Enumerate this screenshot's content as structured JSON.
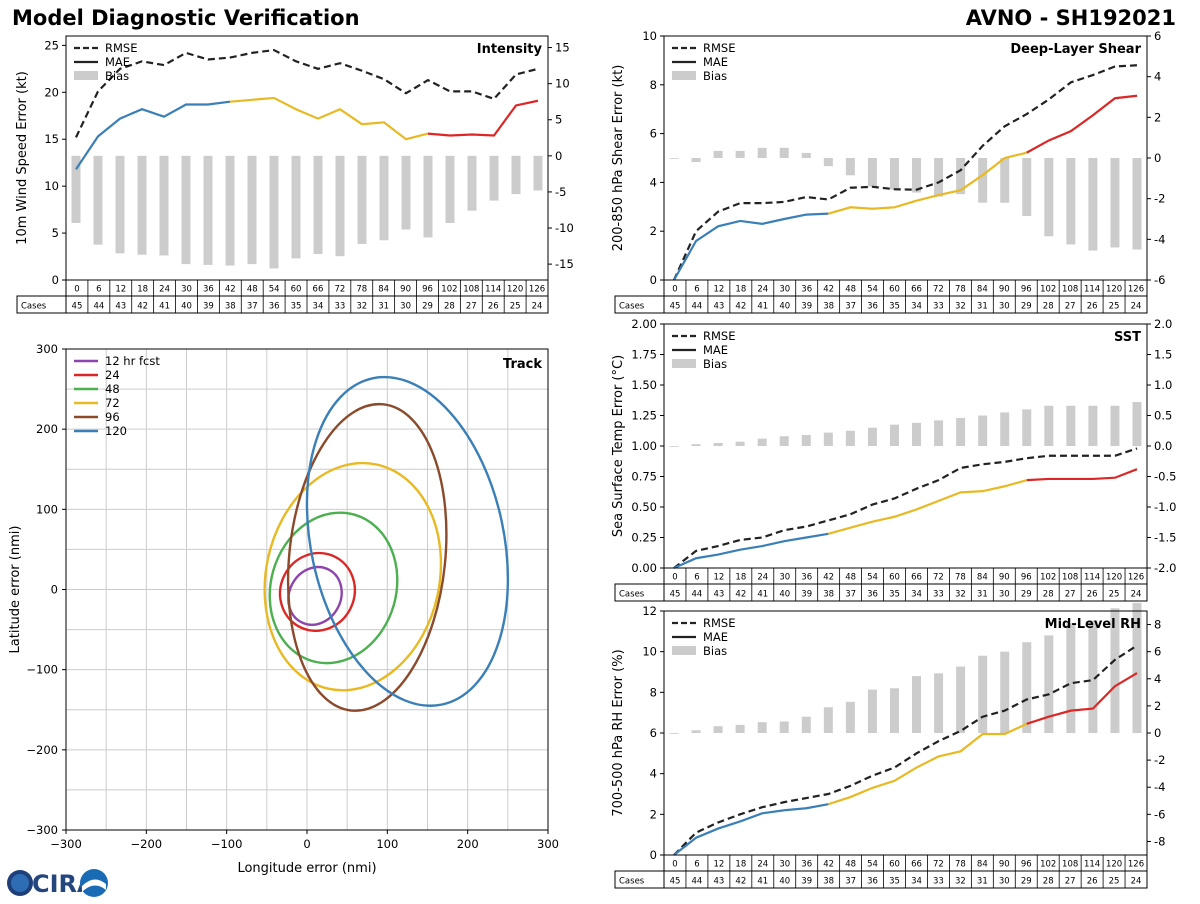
{
  "header": {
    "title_left": "Model Diagnostic Verification",
    "title_right": "AVNO - SH192021"
  },
  "logo": {
    "text": "CIRA"
  },
  "colors": {
    "rmse": "#222222",
    "blue": "#3a7fb7",
    "yellow": "#e8b923",
    "red": "#dd2727",
    "bias": "#cccccc",
    "grid": "#cccccc"
  },
  "table": {
    "cases_label": "Cases",
    "hours": [
      0,
      6,
      12,
      18,
      24,
      30,
      36,
      42,
      48,
      54,
      60,
      66,
      72,
      78,
      84,
      90,
      96,
      102,
      108,
      114,
      120,
      126
    ],
    "cases_intensity": [
      45,
      44,
      43,
      42,
      41,
      40,
      39,
      38,
      37,
      36,
      35,
      34,
      33,
      32,
      31,
      30,
      29,
      28,
      27,
      26,
      25,
      24
    ],
    "cases": [
      45,
      44,
      43,
      42,
      41,
      40,
      39,
      38,
      37,
      36,
      35,
      34,
      33,
      32,
      31,
      30,
      29,
      28,
      27,
      26,
      25,
      24
    ]
  },
  "legend_labels": {
    "rmse": "RMSE",
    "mae": "MAE",
    "bias": "Bias"
  },
  "chart_data": [
    {
      "id": "intensity",
      "type": "line",
      "title": "Intensity",
      "ylabel": "10m Wind Speed Error (kt)",
      "ylim": [
        0,
        26
      ],
      "yticks": [
        0,
        5,
        10,
        15,
        20,
        25
      ],
      "y2lim": [
        -17.2,
        16.6
      ],
      "y2ticks": [
        -15,
        -10,
        -5,
        0,
        5,
        10,
        15
      ],
      "x": [
        0,
        6,
        12,
        18,
        24,
        30,
        36,
        42,
        48,
        54,
        60,
        66,
        72,
        78,
        84,
        90,
        96,
        102,
        108,
        114,
        120,
        126
      ],
      "series": [
        {
          "name": "RMSE",
          "values": [
            15.2,
            20.1,
            22.5,
            23.3,
            22.9,
            24.2,
            23.5,
            23.7,
            24.2,
            24.5,
            23.3,
            22.5,
            23.1,
            22.3,
            21.4,
            19.9,
            21.3,
            20.1,
            20.1,
            19.3,
            21.9,
            22.5
          ]
        },
        {
          "name": "MAE",
          "values": [
            11.8,
            15.3,
            17.2,
            18.2,
            17.4,
            18.7,
            18.7,
            19.0,
            19.2,
            19.4,
            18.2,
            17.2,
            18.2,
            16.6,
            16.8,
            15.0,
            15.6,
            15.4,
            15.5,
            15.4,
            18.6,
            19.1
          ]
        },
        {
          "name": "Bias",
          "values": [
            -9.3,
            -12.3,
            -13.5,
            -13.7,
            -13.8,
            -15.0,
            -15.1,
            -15.2,
            -15.0,
            -15.6,
            -14.2,
            -13.6,
            -13.9,
            -12.2,
            -11.7,
            -10.2,
            -11.3,
            -9.3,
            -7.6,
            -6.2,
            -5.3,
            -4.8
          ]
        }
      ]
    },
    {
      "id": "shear",
      "type": "line",
      "title": "Deep-Layer Shear",
      "ylabel": "200-850 hPa Shear Error (kt)",
      "ylim": [
        0,
        10
      ],
      "yticks": [
        0,
        2,
        4,
        6,
        8,
        10
      ],
      "y2lim": [
        -6,
        6
      ],
      "y2ticks": [
        -6,
        -4,
        -2,
        0,
        2,
        4,
        6
      ],
      "x": [
        0,
        6,
        12,
        18,
        24,
        30,
        36,
        42,
        48,
        54,
        60,
        66,
        72,
        78,
        84,
        90,
        96,
        102,
        108,
        114,
        120,
        126
      ],
      "series": [
        {
          "name": "RMSE",
          "values": [
            0.0,
            2.0,
            2.8,
            3.15,
            3.15,
            3.2,
            3.4,
            3.3,
            3.78,
            3.82,
            3.72,
            3.7,
            4.0,
            4.5,
            5.5,
            6.3,
            6.8,
            7.4,
            8.1,
            8.4,
            8.75,
            8.8
          ]
        },
        {
          "name": "MAE",
          "values": [
            0.0,
            1.6,
            2.2,
            2.42,
            2.3,
            2.5,
            2.68,
            2.72,
            2.98,
            2.92,
            2.98,
            3.25,
            3.48,
            3.68,
            4.3,
            5.0,
            5.22,
            5.72,
            6.1,
            6.75,
            7.45,
            7.55
          ]
        },
        {
          "name": "Bias",
          "values": [
            0.0,
            -0.2,
            0.35,
            0.35,
            0.5,
            0.5,
            0.25,
            -0.4,
            -0.85,
            -1.4,
            -1.55,
            -1.7,
            -1.9,
            -1.78,
            -2.2,
            -2.2,
            -2.85,
            -3.85,
            -4.25,
            -4.55,
            -4.4,
            -4.5
          ]
        }
      ]
    },
    {
      "id": "sst",
      "type": "line",
      "title": "SST",
      "ylabel": "Sea Surface Temp Error (°C)",
      "ylim": [
        0,
        2.0
      ],
      "yticks": [
        0.0,
        0.25,
        0.5,
        0.75,
        1.0,
        1.25,
        1.5,
        1.75,
        2.0
      ],
      "y2lim": [
        -2.0,
        2.0
      ],
      "y2ticks": [
        -2.0,
        -1.5,
        -1.0,
        -0.5,
        0.0,
        0.5,
        1.0,
        1.5,
        2.0
      ],
      "x": [
        0,
        6,
        12,
        18,
        24,
        30,
        36,
        42,
        48,
        54,
        60,
        66,
        72,
        78,
        84,
        90,
        96,
        102,
        108,
        114,
        120,
        126
      ],
      "series": [
        {
          "name": "RMSE",
          "values": [
            0.0,
            0.14,
            0.18,
            0.23,
            0.25,
            0.31,
            0.34,
            0.39,
            0.44,
            0.52,
            0.57,
            0.65,
            0.72,
            0.82,
            0.85,
            0.87,
            0.9,
            0.92,
            0.92,
            0.92,
            0.92,
            0.98
          ]
        },
        {
          "name": "MAE",
          "values": [
            0.0,
            0.08,
            0.11,
            0.15,
            0.18,
            0.22,
            0.25,
            0.28,
            0.33,
            0.38,
            0.42,
            0.48,
            0.55,
            0.62,
            0.63,
            0.67,
            0.72,
            0.73,
            0.73,
            0.73,
            0.74,
            0.81
          ]
        },
        {
          "name": "Bias",
          "values": [
            0.0,
            0.03,
            0.05,
            0.07,
            0.12,
            0.16,
            0.18,
            0.22,
            0.25,
            0.3,
            0.35,
            0.38,
            0.42,
            0.46,
            0.5,
            0.55,
            0.6,
            0.66,
            0.66,
            0.66,
            0.66,
            0.72
          ]
        }
      ]
    },
    {
      "id": "rh",
      "type": "line",
      "title": "Mid-Level RH",
      "ylabel": "700-500 hPa RH Error (%)",
      "ylim": [
        0,
        12
      ],
      "yticks": [
        0,
        2,
        4,
        6,
        8,
        10,
        12
      ],
      "y2lim": [
        -9,
        9
      ],
      "y2ticks": [
        -8,
        -6,
        -4,
        -2,
        0,
        2,
        4,
        6,
        8
      ],
      "x": [
        0,
        6,
        12,
        18,
        24,
        30,
        36,
        42,
        48,
        54,
        60,
        66,
        72,
        78,
        84,
        90,
        96,
        102,
        108,
        114,
        120,
        126
      ],
      "series": [
        {
          "name": "RMSE",
          "values": [
            0.0,
            1.1,
            1.6,
            2.0,
            2.35,
            2.6,
            2.8,
            3.0,
            3.4,
            3.9,
            4.3,
            5.0,
            5.6,
            6.1,
            6.8,
            7.1,
            7.65,
            7.9,
            8.45,
            8.6,
            9.6,
            10.3
          ]
        },
        {
          "name": "MAE",
          "values": [
            0.0,
            0.85,
            1.3,
            1.65,
            2.05,
            2.2,
            2.3,
            2.5,
            2.85,
            3.3,
            3.65,
            4.3,
            4.85,
            5.1,
            5.95,
            5.95,
            6.45,
            6.8,
            7.1,
            7.2,
            8.3,
            8.95
          ]
        },
        {
          "name": "Bias",
          "values": [
            0.0,
            0.2,
            0.5,
            0.6,
            0.8,
            0.85,
            1.2,
            1.9,
            2.3,
            3.2,
            3.3,
            4.2,
            4.4,
            4.9,
            5.7,
            6.0,
            6.7,
            7.2,
            8.1,
            8.3,
            9.2,
            9.6
          ]
        }
      ]
    },
    {
      "id": "track",
      "type": "scatter",
      "title": "Track",
      "xlabel": "Longitude error (nmi)",
      "ylabel": "Latitude error (nmi)",
      "xlim": [
        -300,
        300
      ],
      "ylim": [
        -300,
        300
      ],
      "ticks": [
        -300,
        -200,
        -100,
        0,
        100,
        200,
        300
      ],
      "ellipses": [
        {
          "name": "12 hr fcst",
          "color": "#8e44ad",
          "cx": 10,
          "cy": -8,
          "rx": 32,
          "ry": 37,
          "angle": 28
        },
        {
          "name": "24",
          "color": "#dd2727",
          "cx": 13,
          "cy": -3,
          "rx": 46,
          "ry": 49,
          "angle": 25
        },
        {
          "name": "48",
          "color": "#4caf50",
          "cx": 33,
          "cy": 2,
          "rx": 78,
          "ry": 95,
          "angle": 16
        },
        {
          "name": "72",
          "color": "#e8b923",
          "cx": 57,
          "cy": 16,
          "rx": 108,
          "ry": 143,
          "angle": 12
        },
        {
          "name": "96",
          "color": "#8b4a2b",
          "cx": 75,
          "cy": 40,
          "rx": 97,
          "ry": 192,
          "angle": 6
        },
        {
          "name": "120",
          "color": "#3a7fb7",
          "cx": 125,
          "cy": 60,
          "rx": 120,
          "ry": 208,
          "angle": -12
        }
      ]
    }
  ]
}
